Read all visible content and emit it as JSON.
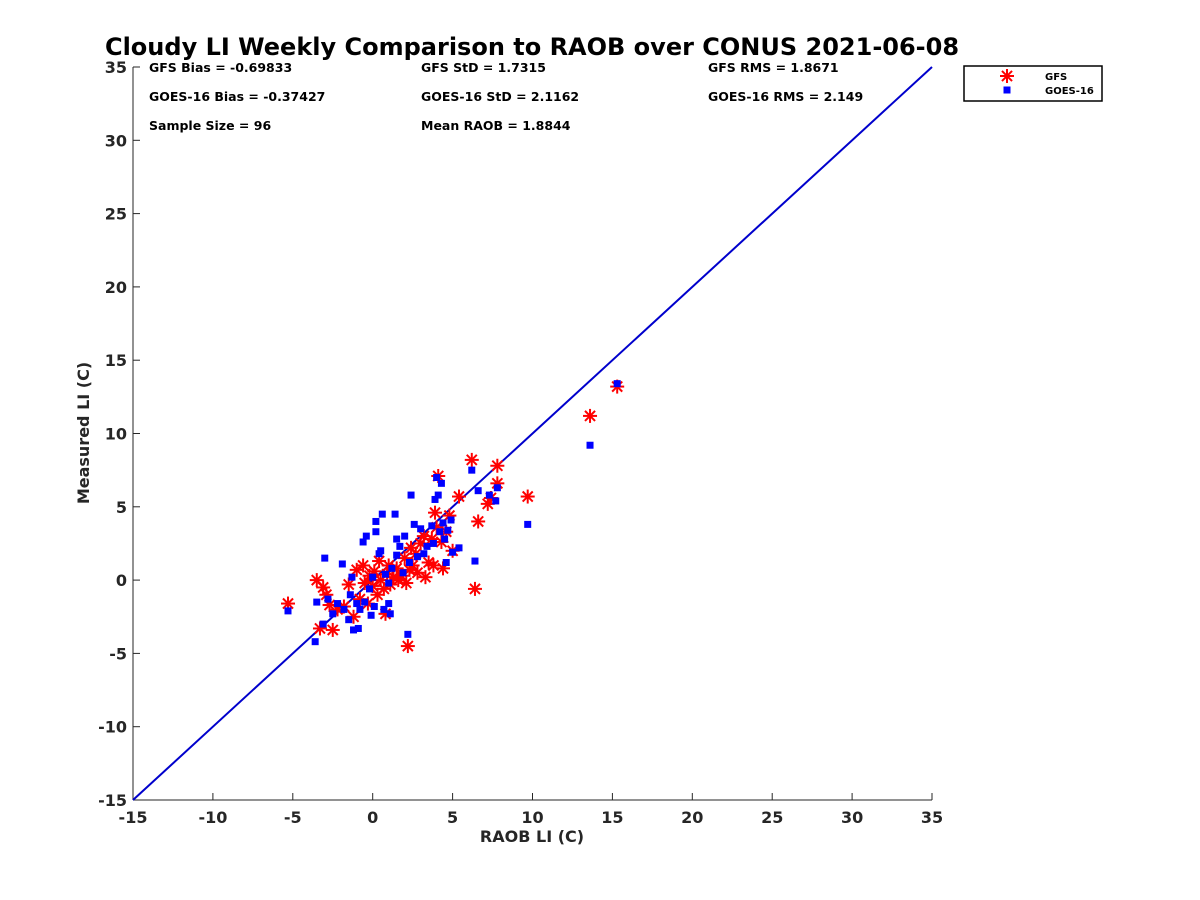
{
  "chart_data": {
    "type": "scatter",
    "title": "Cloudy LI Weekly Comparison to RAOB over CONUS 2021-06-08",
    "xlabel": "RAOB LI (C)",
    "ylabel": "Measured LI (C)",
    "xlim": [
      -15,
      35
    ],
    "ylim": [
      -15,
      35
    ],
    "xticks": [
      -15,
      -10,
      -5,
      0,
      5,
      10,
      15,
      20,
      25,
      30,
      35
    ],
    "yticks": [
      -15,
      -10,
      -5,
      0,
      5,
      10,
      15,
      20,
      25,
      30,
      35
    ],
    "grid": false,
    "legend_position": "top-right outside",
    "stats": [
      {
        "text": "GFS Bias = -0.69833"
      },
      {
        "text": "GFS StD = 1.7315"
      },
      {
        "text": "GFS RMS = 1.8671"
      },
      {
        "text": "GOES-16 Bias = -0.37427"
      },
      {
        "text": "GOES-16 StD = 2.1162"
      },
      {
        "text": "GOES-16 RMS = 2.149"
      },
      {
        "text": "Sample Size = 96"
      },
      {
        "text": "Mean RAOB = 1.8844"
      }
    ],
    "reference_line": {
      "from": [
        -15,
        -15
      ],
      "to": [
        35,
        35
      ],
      "color": "#0000cc"
    },
    "series": [
      {
        "name": "GFS",
        "marker": "asterisk",
        "color": "#ff0000",
        "points": [
          [
            -5.3,
            -1.6
          ],
          [
            -3.5,
            0.0
          ],
          [
            -3.3,
            -3.3
          ],
          [
            -3.1,
            -0.5
          ],
          [
            -2.9,
            -1.0
          ],
          [
            -2.7,
            -1.7
          ],
          [
            -2.5,
            -3.4
          ],
          [
            -2.2,
            -2.0
          ],
          [
            -1.8,
            -1.8
          ],
          [
            -1.5,
            -0.3
          ],
          [
            -1.2,
            -2.5
          ],
          [
            -1.0,
            0.7
          ],
          [
            -0.8,
            -1.3
          ],
          [
            -0.6,
            1.0
          ],
          [
            -0.5,
            -0.2
          ],
          [
            -0.3,
            -1.6
          ],
          [
            -0.2,
            0.3
          ],
          [
            0.0,
            -0.4
          ],
          [
            0.1,
            0.6
          ],
          [
            0.3,
            -1.0
          ],
          [
            0.4,
            1.3
          ],
          [
            0.5,
            0.0
          ],
          [
            0.7,
            -0.6
          ],
          [
            0.8,
            -2.3
          ],
          [
            0.9,
            0.4
          ],
          [
            1.0,
            1.0
          ],
          [
            1.1,
            -0.3
          ],
          [
            1.3,
            0.2
          ],
          [
            1.5,
            0.8
          ],
          [
            1.6,
            0.0
          ],
          [
            1.8,
            0.3
          ],
          [
            2.0,
            1.5
          ],
          [
            2.1,
            -0.2
          ],
          [
            2.2,
            -4.5
          ],
          [
            2.3,
            0.7
          ],
          [
            2.4,
            2.2
          ],
          [
            2.5,
            1.0
          ],
          [
            2.7,
            1.8
          ],
          [
            2.8,
            0.5
          ],
          [
            3.0,
            2.5
          ],
          [
            3.2,
            3.0
          ],
          [
            3.3,
            0.2
          ],
          [
            3.5,
            1.2
          ],
          [
            3.7,
            2.8
          ],
          [
            3.8,
            1.0
          ],
          [
            3.9,
            4.6
          ],
          [
            4.0,
            3.6
          ],
          [
            4.1,
            7.1
          ],
          [
            4.3,
            2.6
          ],
          [
            4.4,
            0.8
          ],
          [
            4.6,
            3.3
          ],
          [
            4.8,
            4.4
          ],
          [
            5.0,
            2.0
          ],
          [
            5.4,
            5.7
          ],
          [
            6.2,
            8.2
          ],
          [
            6.4,
            -0.6
          ],
          [
            6.6,
            4.0
          ],
          [
            7.2,
            5.2
          ],
          [
            7.4,
            5.6
          ],
          [
            7.8,
            7.8
          ],
          [
            7.8,
            6.6
          ],
          [
            9.7,
            5.7
          ],
          [
            13.6,
            11.2
          ],
          [
            15.3,
            13.2
          ]
        ]
      },
      {
        "name": "GOES-16",
        "marker": "square",
        "color": "#0000ff",
        "points": [
          [
            -5.3,
            -2.1
          ],
          [
            -3.6,
            -4.2
          ],
          [
            -3.5,
            -1.5
          ],
          [
            -3.1,
            -3.0
          ],
          [
            -3.0,
            1.5
          ],
          [
            -2.8,
            -1.3
          ],
          [
            -2.5,
            -2.3
          ],
          [
            -2.2,
            -1.6
          ],
          [
            -1.9,
            1.1
          ],
          [
            -1.8,
            -2.0
          ],
          [
            -1.5,
            -2.7
          ],
          [
            -1.4,
            -1.0
          ],
          [
            -1.3,
            0.2
          ],
          [
            -1.2,
            -3.4
          ],
          [
            -1.0,
            -1.6
          ],
          [
            -0.9,
            -3.3
          ],
          [
            -0.8,
            -2.0
          ],
          [
            -0.6,
            2.6
          ],
          [
            -0.5,
            -1.5
          ],
          [
            -0.4,
            3.0
          ],
          [
            -0.2,
            -0.6
          ],
          [
            -0.1,
            -2.4
          ],
          [
            0.0,
            0.2
          ],
          [
            0.1,
            -1.8
          ],
          [
            0.2,
            4.0
          ],
          [
            0.2,
            3.3
          ],
          [
            0.4,
            1.8
          ],
          [
            0.5,
            2.0
          ],
          [
            0.6,
            4.5
          ],
          [
            0.7,
            -2.0
          ],
          [
            0.8,
            0.4
          ],
          [
            1.0,
            -0.2
          ],
          [
            1.0,
            -1.6
          ],
          [
            1.1,
            -2.3
          ],
          [
            1.2,
            0.8
          ],
          [
            1.4,
            4.5
          ],
          [
            1.5,
            1.7
          ],
          [
            1.5,
            2.8
          ],
          [
            1.7,
            2.3
          ],
          [
            1.9,
            0.5
          ],
          [
            2.0,
            3.0
          ],
          [
            2.2,
            -3.7
          ],
          [
            2.3,
            1.2
          ],
          [
            2.4,
            5.8
          ],
          [
            2.6,
            3.8
          ],
          [
            2.8,
            1.6
          ],
          [
            3.0,
            3.5
          ],
          [
            3.2,
            1.8
          ],
          [
            3.4,
            2.3
          ],
          [
            3.7,
            3.7
          ],
          [
            3.8,
            2.5
          ],
          [
            3.9,
            5.5
          ],
          [
            4.0,
            7.0
          ],
          [
            4.1,
            5.8
          ],
          [
            4.2,
            3.3
          ],
          [
            4.3,
            6.6
          ],
          [
            4.4,
            3.9
          ],
          [
            4.5,
            2.8
          ],
          [
            4.6,
            1.2
          ],
          [
            4.7,
            3.4
          ],
          [
            4.9,
            4.1
          ],
          [
            5.0,
            1.9
          ],
          [
            5.4,
            2.2
          ],
          [
            6.2,
            7.5
          ],
          [
            6.4,
            1.3
          ],
          [
            6.6,
            6.1
          ],
          [
            7.3,
            5.8
          ],
          [
            7.7,
            5.4
          ],
          [
            7.8,
            6.3
          ],
          [
            9.7,
            3.8
          ],
          [
            13.6,
            9.2
          ],
          [
            15.3,
            13.4
          ]
        ]
      }
    ]
  }
}
